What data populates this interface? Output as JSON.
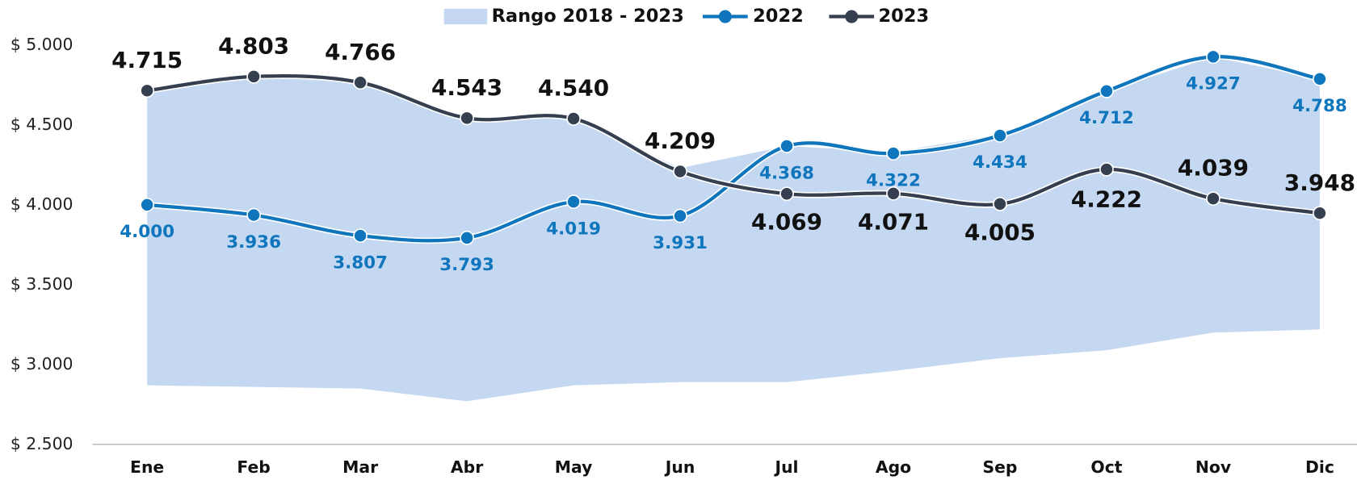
{
  "chart_data": {
    "type": "line",
    "categories": [
      "Ene",
      "Feb",
      "Mar",
      "Abr",
      "May",
      "Jun",
      "Jul",
      "Ago",
      "Sep",
      "Oct",
      "Nov",
      "Dic"
    ],
    "range": {
      "name": "Rango 2018 - 2023",
      "color": "#c5d8f1",
      "low": [
        2870,
        2860,
        2850,
        2770,
        2870,
        2890,
        2890,
        2960,
        3040,
        3090,
        3200,
        3220
      ],
      "high": [
        4715,
        4803,
        4766,
        4543,
        4540,
        4230,
        4368,
        4330,
        4440,
        4712,
        4927,
        4788
      ]
    },
    "series": [
      {
        "name": "2022",
        "color": "#0f75bc",
        "values": [
          4000,
          3936,
          3807,
          3793,
          4019,
          3931,
          4368,
          4322,
          4434,
          4712,
          4927,
          4788
        ],
        "value_labels": [
          "4.000",
          "3.936",
          "3.807",
          "3.793",
          "4.019",
          "3.931",
          "4.368",
          "4.322",
          "4.434",
          "4.712",
          "4.927",
          "4.788"
        ]
      },
      {
        "name": "2023",
        "color": "#353f4f",
        "values": [
          4715,
          4803,
          4766,
          4543,
          4540,
          4209,
          4069,
          4071,
          4005,
          4222,
          4039,
          3948
        ],
        "value_labels": [
          "4.715",
          "4.803",
          "4.766",
          "4.543",
          "4.540",
          "4.209",
          "4.069",
          "4.071",
          "4.005",
          "4.222",
          "4.039",
          "3.948"
        ]
      }
    ],
    "ylim": [
      2500,
      5000
    ],
    "yticks": [
      {
        "value": 2500,
        "label": "$ 2.500"
      },
      {
        "value": 3000,
        "label": "$ 3.000"
      },
      {
        "value": 3500,
        "label": "$ 3.500"
      },
      {
        "value": 4000,
        "label": "$ 4.000"
      },
      {
        "value": 4500,
        "label": "$ 4.500"
      },
      {
        "value": 5000,
        "label": "$ 5.000"
      }
    ],
    "grid": false
  }
}
